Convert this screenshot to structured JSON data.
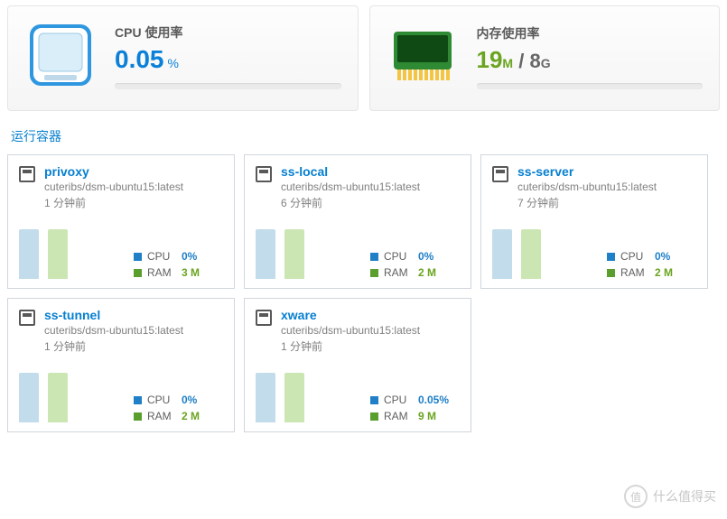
{
  "colors": {
    "link": "#057FD0",
    "blue": "#1f7fc7",
    "green": "#6aa420",
    "bar_blue": "#c2dceb",
    "bar_green": "#cce6b3",
    "sq_blue": "#1f7fc7",
    "sq_green": "#5a9e2e"
  },
  "top": {
    "cpu": {
      "label": "CPU 使用率",
      "value": "0.05",
      "unit": "%"
    },
    "mem": {
      "label": "内存使用率",
      "used_value": "19",
      "used_unit": "M",
      "separator": " / ",
      "total_value": "8",
      "total_unit": "G"
    }
  },
  "section_title": "运行容器",
  "stat_labels": {
    "cpu": "CPU",
    "ram": "RAM"
  },
  "containers": [
    {
      "name": "privoxy",
      "image": "cuteribs/dsm-ubuntu15:latest",
      "time": "1 分钟前",
      "cpu": "0%",
      "ram": "3 M"
    },
    {
      "name": "ss-local",
      "image": "cuteribs/dsm-ubuntu15:latest",
      "time": "6 分钟前",
      "cpu": "0%",
      "ram": "2 M"
    },
    {
      "name": "ss-server",
      "image": "cuteribs/dsm-ubuntu15:latest",
      "time": "7 分钟前",
      "cpu": "0%",
      "ram": "2 M"
    },
    {
      "name": "ss-tunnel",
      "image": "cuteribs/dsm-ubuntu15:latest",
      "time": "1 分钟前",
      "cpu": "0%",
      "ram": "2 M"
    },
    {
      "name": "xware",
      "image": "cuteribs/dsm-ubuntu15:latest",
      "time": "1 分钟前",
      "cpu": "0.05%",
      "ram": "9 M"
    }
  ],
  "watermark": {
    "badge": "值",
    "text": "什么值得买"
  }
}
